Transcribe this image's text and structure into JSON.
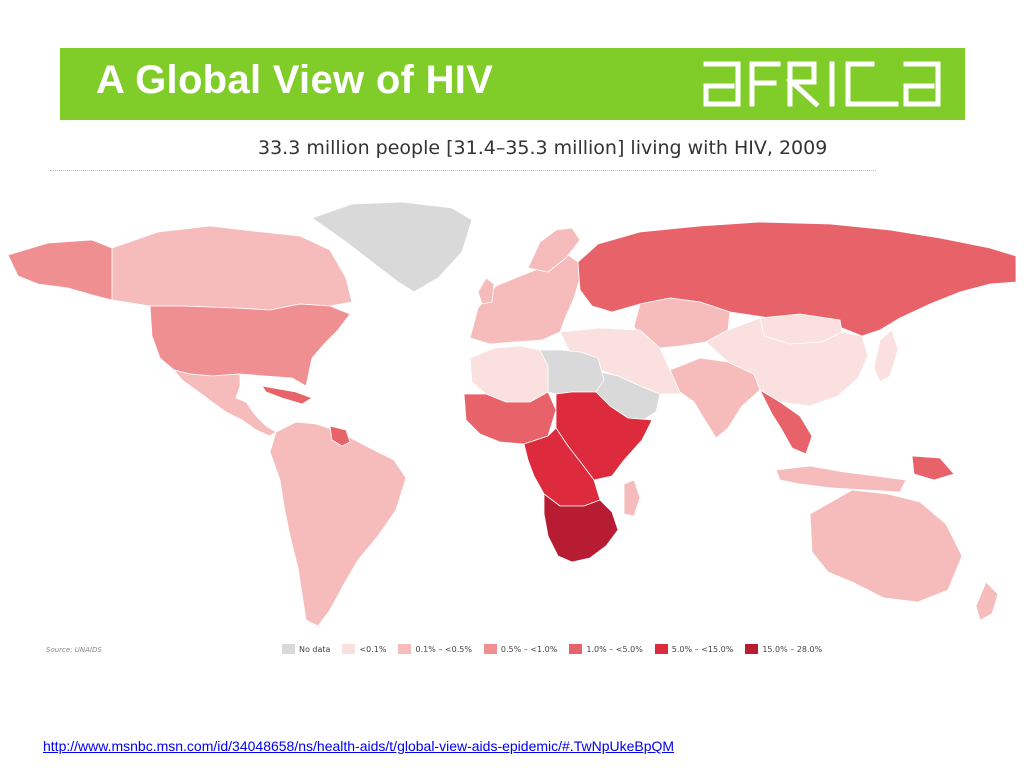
{
  "slide": {
    "title": "A Global View of HIV",
    "logo_text": "AFRICA",
    "title_bar_color": "#80cc28"
  },
  "map": {
    "title": "33.3 million people [31.4–35.3 million] living with HIV, 2009",
    "source": "Source: UNAIDS",
    "legend": [
      {
        "label": "No data",
        "color": "#d9d9d9"
      },
      {
        "label": "<0.1%",
        "color": "#fbe0e0"
      },
      {
        "label": "0.1% – <0.5%",
        "color": "#f6bcbc"
      },
      {
        "label": "0.5% – <1.0%",
        "color": "#ef8f92"
      },
      {
        "label": "1.0% – <5.0%",
        "color": "#e8626a"
      },
      {
        "label": "5.0% – <15.0%",
        "color": "#dd2a3c"
      },
      {
        "label": "15.0% – 28.0%",
        "color": "#b71c32"
      }
    ],
    "regions": [
      {
        "name": "Alaska",
        "category": "0.5% – <1.0%"
      },
      {
        "name": "Canada",
        "category": "0.1% – <0.5%"
      },
      {
        "name": "Greenland",
        "category": "No data"
      },
      {
        "name": "United States",
        "category": "0.5% – <1.0%"
      },
      {
        "name": "Mexico & Central America",
        "category": "0.1% – <0.5%"
      },
      {
        "name": "Caribbean",
        "category": "1.0% – <5.0%"
      },
      {
        "name": "South America",
        "category": "0.1% – <0.5%"
      },
      {
        "name": "Guyana",
        "category": "1.0% – <5.0%"
      },
      {
        "name": "Western Europe",
        "category": "0.1% – <0.5%"
      },
      {
        "name": "Russia",
        "category": "1.0% – <5.0%"
      },
      {
        "name": "North Africa",
        "category": "<0.1%"
      },
      {
        "name": "Libya & Egypt",
        "category": "No data"
      },
      {
        "name": "West Africa",
        "category": "1.0% – <5.0%"
      },
      {
        "name": "Central Africa",
        "category": "5.0% – <15.0%"
      },
      {
        "name": "East Africa",
        "category": "5.0% – <15.0%"
      },
      {
        "name": "Southern Africa",
        "category": "15.0% – 28.0%"
      },
      {
        "name": "Madagascar",
        "category": "0.1% – <0.5%"
      },
      {
        "name": "Middle East",
        "category": "<0.1%"
      },
      {
        "name": "Arabian Peninsula",
        "category": "No data"
      },
      {
        "name": "Central Asia",
        "category": "0.1% – <0.5%"
      },
      {
        "name": "India",
        "category": "0.1% – <0.5%"
      },
      {
        "name": "China",
        "category": "<0.1%"
      },
      {
        "name": "Mongolia",
        "category": "<0.1%"
      },
      {
        "name": "Southeast Asia",
        "category": "1.0% – <5.0%"
      },
      {
        "name": "Indonesia",
        "category": "0.1% – <0.5%"
      },
      {
        "name": "Papua New Guinea",
        "category": "1.0% – <5.0%"
      },
      {
        "name": "Japan",
        "category": "<0.1%"
      },
      {
        "name": "Australia",
        "category": "0.1% – <0.5%"
      },
      {
        "name": "New Zealand",
        "category": "0.1% – <0.5%"
      }
    ]
  },
  "source_link": {
    "text": "http://www.msnbc.msn.com/id/34048658/ns/health-aids/t/global-view-aids-epidemic/#.TwNpUkeBpQM"
  }
}
